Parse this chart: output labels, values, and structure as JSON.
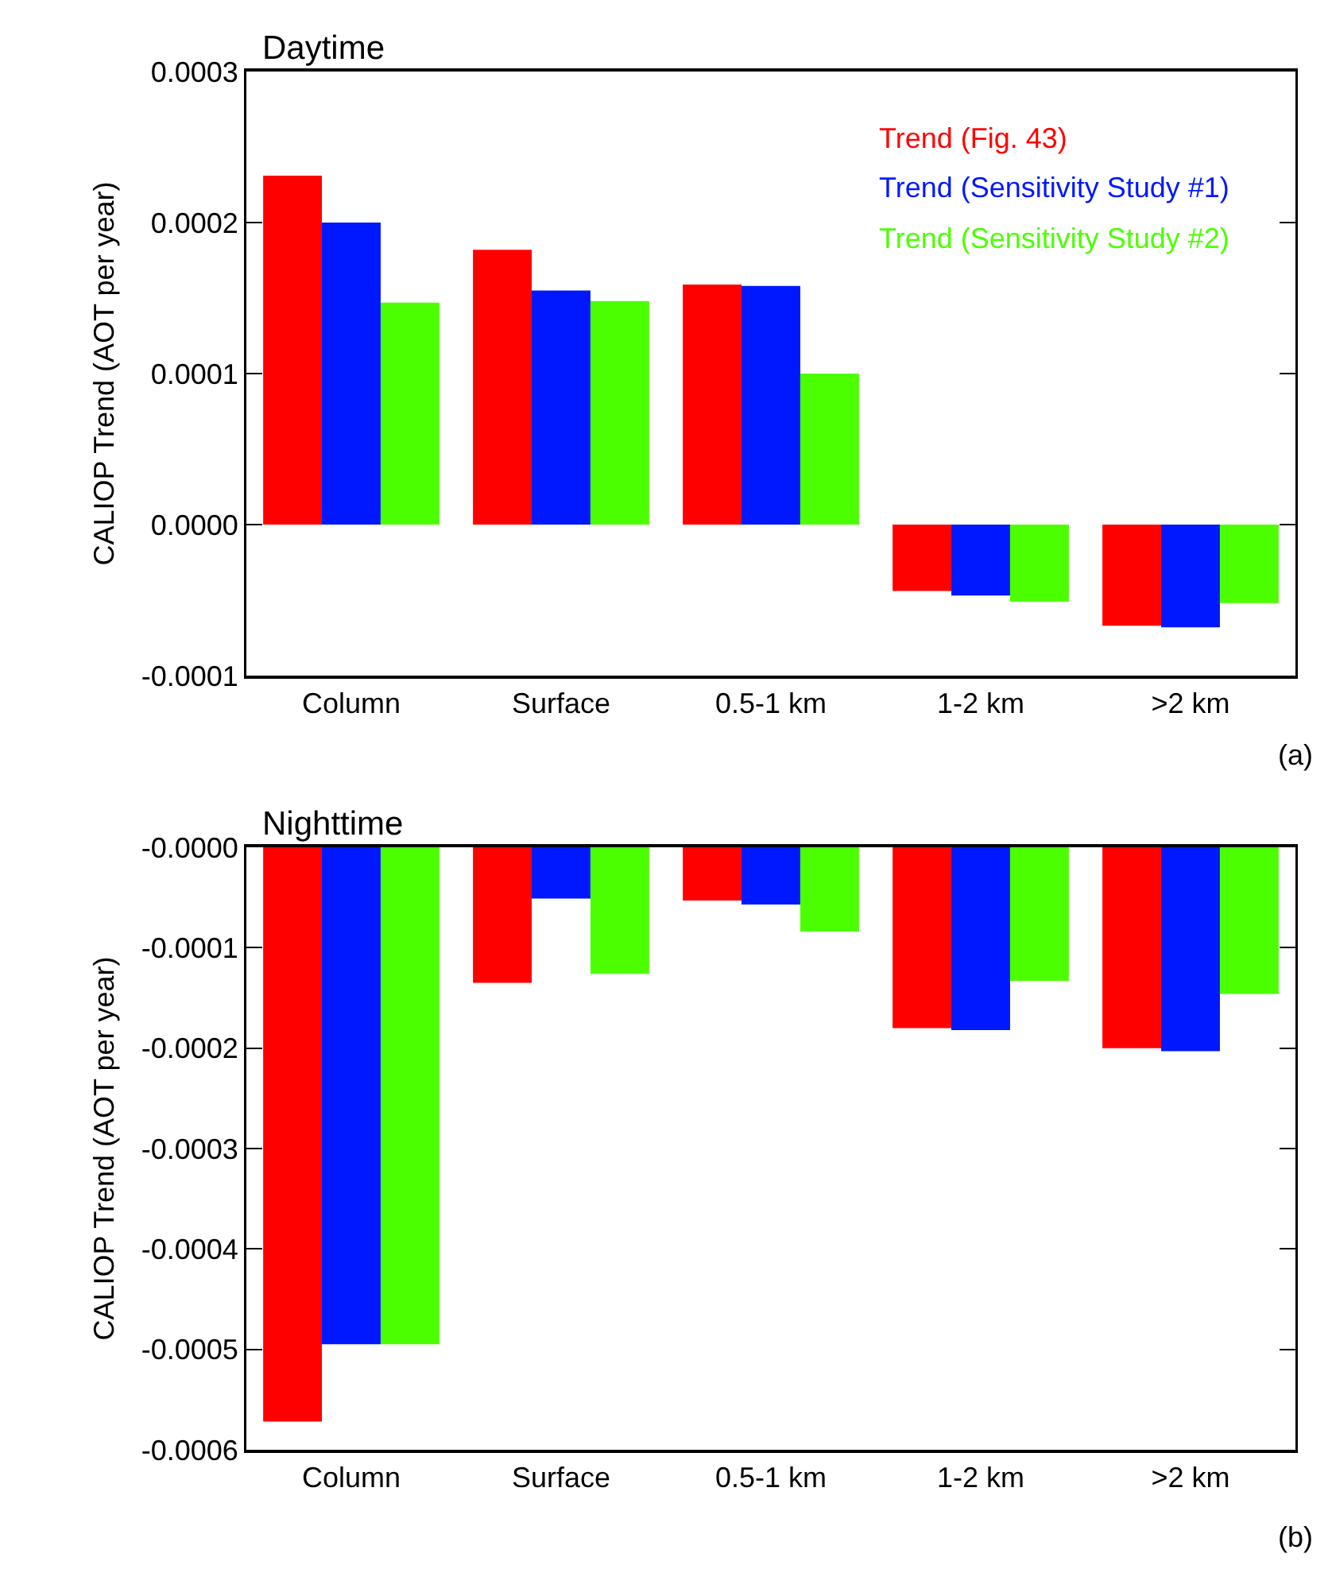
{
  "chart_data": [
    {
      "type": "bar",
      "title": "Daytime",
      "ylabel": "CALIOP Trend (AOT per year)",
      "categories": [
        "Column",
        "Surface",
        "0.5-1 km",
        "1-2 km",
        ">2 km"
      ],
      "series": [
        {
          "name": "Trend (Fig. 43)",
          "color": "#ff0000",
          "values": [
            0.000231,
            0.000182,
            0.000159,
            -4.4e-05,
            -6.7e-05
          ]
        },
        {
          "name": "Trend (Sensitivity Study #1)",
          "color": "#0018ff",
          "values": [
            0.0002,
            0.000155,
            0.000158,
            -4.7e-05,
            -6.8e-05
          ]
        },
        {
          "name": "Trend (Sensitivity Study #2)",
          "color": "#4cff00",
          "values": [
            0.000147,
            0.000148,
            0.0001,
            -5.1e-05,
            -5.2e-05
          ]
        }
      ],
      "ylim": [
        -0.0001,
        0.0003
      ],
      "yticks": [
        -0.0001,
        {
          "value": 0,
          "label": "0.0000"
        },
        0.0001,
        0.0002,
        0.0003
      ],
      "grid": false,
      "legend": "top right",
      "annotations": [
        "(a)"
      ]
    },
    {
      "type": "bar",
      "title": "Nighttime",
      "ylabel": "CALIOP Trend (AOT per year)",
      "categories": [
        "Column",
        "Surface",
        "0.5-1 km",
        "1-2 km",
        ">2 km"
      ],
      "series": [
        {
          "color": "#ff0000",
          "values": [
            -0.000572,
            -0.000135,
            -5.3e-05,
            -0.00018,
            -0.0002
          ]
        },
        {
          "color": "#0018ff",
          "values": [
            -0.000495,
            -5.1e-05,
            -5.7e-05,
            -0.000182,
            -0.000203
          ]
        },
        {
          "color": "#4cff00",
          "values": [
            -0.000495,
            -0.000126,
            -8.4e-05,
            -0.000133,
            -0.000146
          ]
        }
      ],
      "ylim": [
        -0.0006,
        0
      ],
      "yticks": [
        -0.0006,
        -0.0005,
        -0.0004,
        -0.0003,
        -0.0002,
        -0.0001,
        {
          "value": 0,
          "label": "-0.0000"
        }
      ],
      "grid": false,
      "annotations": [
        "(b)"
      ]
    }
  ]
}
